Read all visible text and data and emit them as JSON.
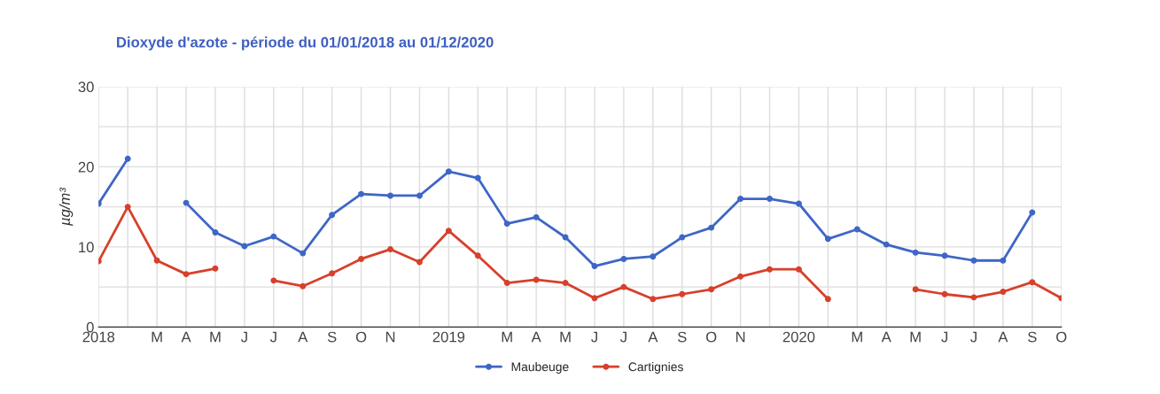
{
  "chart_data": {
    "type": "line",
    "title": "Dioxyde d'azote - période du 01/01/2018 au 01/12/2020",
    "ylabel": "µg/m³",
    "categories": [
      "2018",
      null,
      "M",
      "A",
      "M",
      "J",
      "J",
      "A",
      "S",
      "O",
      "N",
      null,
      "2019",
      null,
      "M",
      "A",
      "M",
      "J",
      "J",
      "A",
      "S",
      "O",
      "N",
      null,
      "2020",
      null,
      "M",
      "A",
      "M",
      "J",
      "J",
      "A",
      "S",
      "O"
    ],
    "series": [
      {
        "name": "Maubeuge",
        "color": "#3e66c6",
        "values": [
          15.4,
          21.0,
          null,
          15.5,
          11.8,
          10.1,
          11.3,
          9.2,
          14.0,
          16.6,
          16.4,
          16.4,
          19.4,
          18.6,
          12.9,
          13.7,
          11.2,
          7.6,
          8.5,
          8.8,
          11.2,
          12.4,
          16.0,
          16.0,
          15.4,
          11.0,
          12.2,
          10.3,
          9.3,
          8.9,
          8.3,
          8.3,
          14.3,
          null
        ]
      },
      {
        "name": "Cartignies",
        "color": "#d7402b",
        "values": [
          8.2,
          15.0,
          8.3,
          6.6,
          7.3,
          null,
          5.8,
          5.1,
          6.7,
          8.5,
          9.7,
          8.1,
          12.0,
          8.9,
          5.5,
          5.9,
          5.5,
          3.6,
          5.0,
          3.5,
          4.1,
          4.7,
          6.3,
          7.2,
          7.2,
          3.5,
          null,
          null,
          4.7,
          4.1,
          3.7,
          4.4,
          5.6,
          3.6
        ]
      }
    ],
    "ylim": [
      0,
      30
    ],
    "yticks": [
      0,
      {
        "value": 5,
        "label": null
      },
      10,
      {
        "value": 15,
        "label": null
      },
      20,
      {
        "value": 25,
        "label": null
      },
      30
    ],
    "grid": true,
    "legend": "bottom",
    "marker": "circle",
    "line_style": "solid"
  }
}
